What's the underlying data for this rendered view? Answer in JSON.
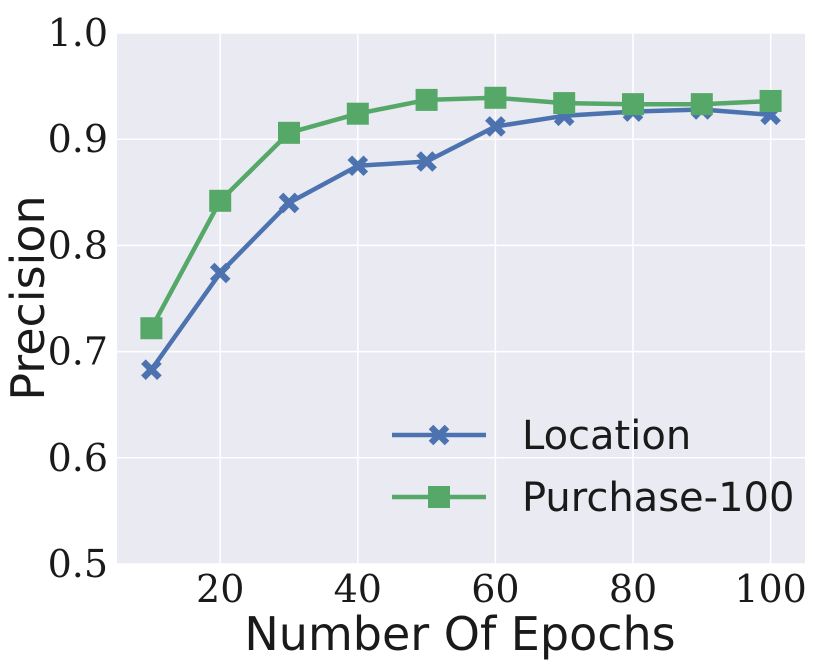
{
  "chart_data": {
    "type": "line",
    "xlabel": "Number Of Epochs",
    "ylabel": "Precision",
    "xlim": [
      5,
      105
    ],
    "ylim": [
      0.5,
      1.0
    ],
    "x_ticks": [
      20,
      40,
      60,
      80,
      100
    ],
    "y_ticks": [
      0.5,
      0.6,
      0.7,
      0.8,
      0.9,
      1.0
    ],
    "y_tick_labels": [
      "0.5",
      "0.6",
      "0.7",
      "0.8",
      "0.9",
      "1.0"
    ],
    "grid": true,
    "legend_position": "lower-right",
    "background": "#e9eaf2",
    "x": [
      10,
      20,
      30,
      40,
      50,
      60,
      70,
      80,
      90,
      100
    ],
    "series": [
      {
        "name": "Location",
        "color": "#4c72b0",
        "marker": "x-marker",
        "values": [
          0.683,
          0.774,
          0.84,
          0.875,
          0.879,
          0.912,
          0.922,
          0.926,
          0.928,
          0.923
        ]
      },
      {
        "name": "Purchase-100",
        "color": "#55a868",
        "marker": "square-marker",
        "values": [
          0.722,
          0.842,
          0.906,
          0.924,
          0.937,
          0.939,
          0.934,
          0.933,
          0.933,
          0.936
        ]
      }
    ]
  }
}
